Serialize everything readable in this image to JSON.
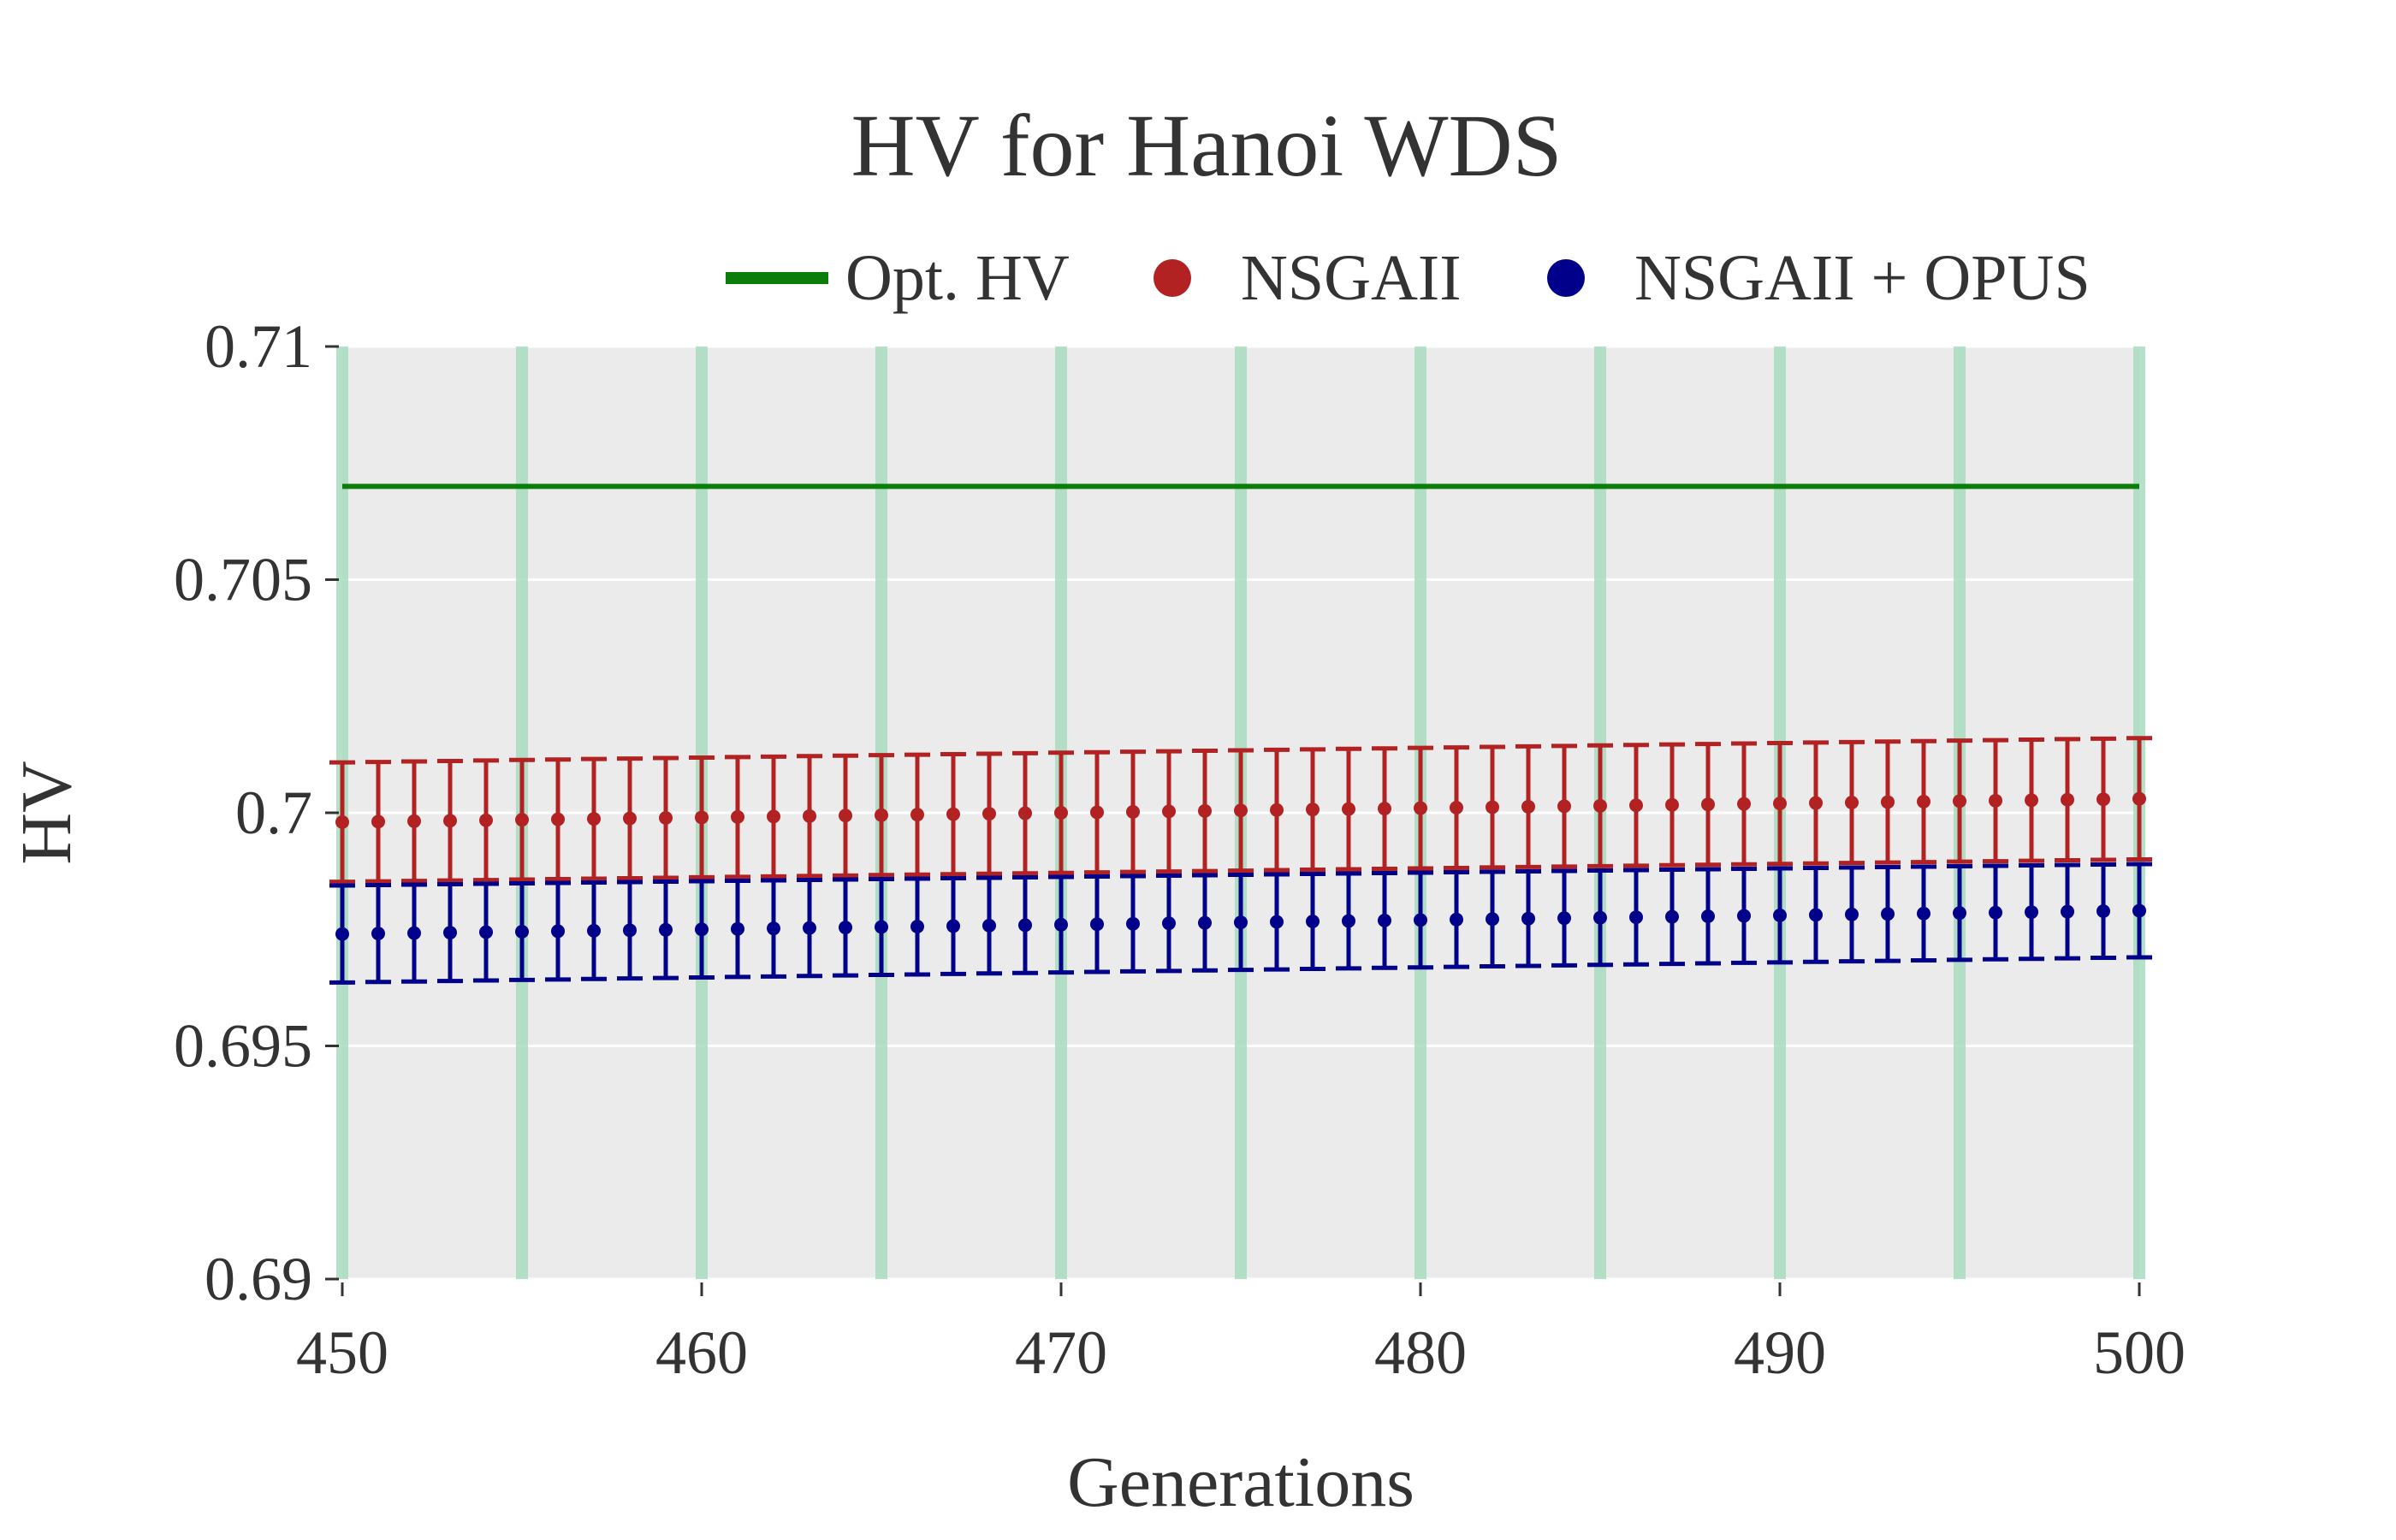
{
  "chart_data": {
    "type": "scatter",
    "title": "HV for Hanoi WDS",
    "xlabel": "Generations",
    "ylabel": "HV",
    "xlim": [
      450,
      500
    ],
    "ylim": [
      0.69,
      0.71
    ],
    "x_ticks": [
      "450",
      "460",
      "470",
      "480",
      "490",
      "500"
    ],
    "y_ticks": [
      "0.69",
      "0.695",
      "0.7",
      "0.705",
      "0.71"
    ],
    "y_tick_values": [
      0.69,
      0.695,
      0.7,
      0.705,
      0.71
    ],
    "x_tick_values": [
      450,
      460,
      470,
      480,
      490,
      500
    ],
    "grid": true,
    "legend_position": "top-right",
    "background_color": "#ebebeb",
    "highlight_generations": [
      450,
      455,
      460,
      465,
      470,
      475,
      480,
      485,
      490,
      495,
      500
    ],
    "highlight_color": "#a8dcbf",
    "reference_line": {
      "name": "Opt. HV",
      "y": 0.707,
      "color": "#0a7d0a"
    },
    "series": [
      {
        "name": "NSGAII",
        "color": "#b22222",
        "x_start": 450,
        "x_end": 500,
        "y_start": 0.6998,
        "y_end": 0.7003,
        "error_start": 0.00128,
        "error_end": 0.0013
      },
      {
        "name": "NSGAII + OPUS",
        "color": "#00008b",
        "x_start": 450,
        "x_end": 500,
        "y_start": 0.6974,
        "y_end": 0.6979,
        "error_start": 0.00104,
        "error_end": 0.001
      }
    ]
  }
}
